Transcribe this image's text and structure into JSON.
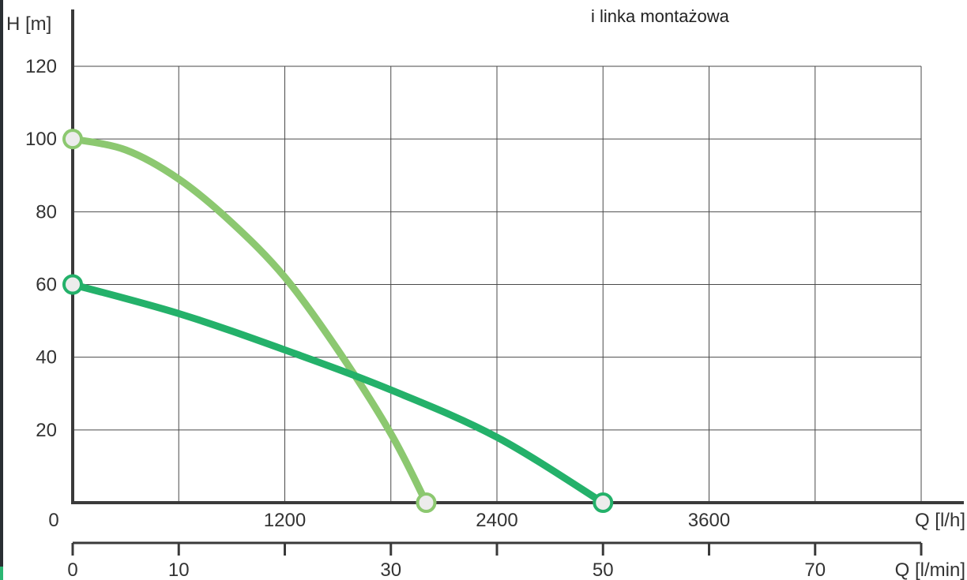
{
  "chart_data": {
    "type": "line",
    "title": "i linka montażowa",
    "ylabel": "H [m]",
    "xlabel_lph": "Q [l/h]",
    "xlabel_lpm": "Q [l/min]",
    "ylim": [
      0,
      120
    ],
    "y_ticks": [
      "20",
      "40",
      "60",
      "80",
      "100",
      "120"
    ],
    "y_tick_values": [
      20,
      40,
      60,
      80,
      100,
      120
    ],
    "x_lph_range": [
      0,
      4800
    ],
    "x_lph_ticks": [
      "0",
      "1200",
      "2400",
      "3600"
    ],
    "x_lph_tick_values": [
      0,
      1200,
      2400,
      3600
    ],
    "x_lpm_range": [
      0,
      80
    ],
    "x_lpm_ticks": [
      "0",
      "10",
      "30",
      "50",
      "70"
    ],
    "x_lpm_tick_values": [
      0,
      10,
      30,
      50,
      70
    ],
    "x_lpm_minor_ticks": [
      20,
      40,
      60,
      80
    ],
    "grid": true,
    "series": [
      {
        "color": "#8cc870",
        "x_lph": [
          0,
          300,
          600,
          900,
          1200,
          1500,
          1800,
          2000
        ],
        "values": [
          100,
          97,
          89,
          77,
          62,
          42,
          19,
          0
        ]
      },
      {
        "color": "#24b16a",
        "x_lph": [
          0,
          600,
          1200,
          1800,
          2400,
          3000
        ],
        "values": [
          60,
          52,
          42,
          31,
          18,
          0
        ]
      }
    ]
  }
}
